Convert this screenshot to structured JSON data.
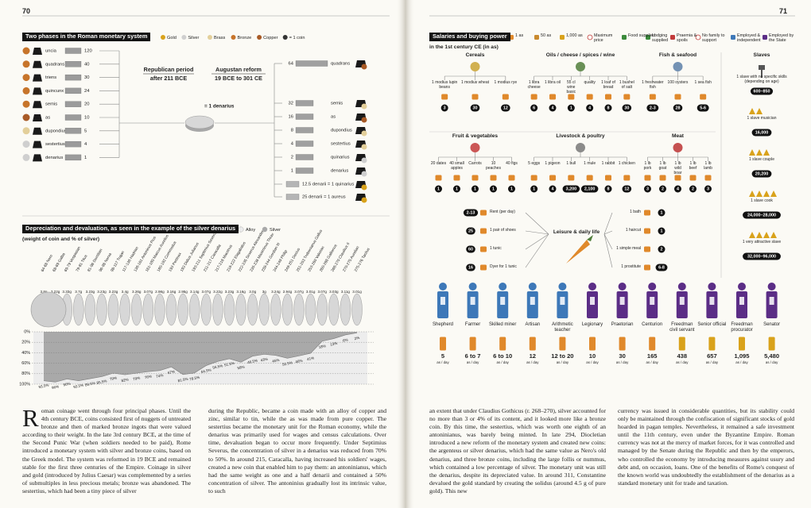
{
  "left_page": {
    "page_number": "70",
    "monetary": {
      "title": "Two phases in the Roman monetary system",
      "legend": [
        {
          "label": "Gold",
          "color": "#d9a21b"
        },
        {
          "label": "Silver",
          "color": "#cfcfcf"
        },
        {
          "label": "Brass",
          "color": "#e3cf9a"
        },
        {
          "label": "Bronze",
          "color": "#c7742a"
        },
        {
          "label": "Copper",
          "color": "#a85a26"
        },
        {
          "label": "= 1 coin",
          "color": "#333333"
        }
      ],
      "republican": {
        "title": "Republican period",
        "dates": "after 211 BCE",
        "coins": [
          {
            "name": "uncia",
            "count": "120",
            "color": "#c7742a"
          },
          {
            "name": "quadrans",
            "count": "40",
            "color": "#c7742a"
          },
          {
            "name": "triens",
            "count": "30",
            "color": "#c7742a"
          },
          {
            "name": "quincunx",
            "count": "24",
            "color": "#c7742a"
          },
          {
            "name": "semis",
            "count": "20",
            "color": "#c7742a"
          },
          {
            "name": "as",
            "count": "10",
            "color": "#a85a26"
          },
          {
            "name": "dupondius",
            "count": "5",
            "color": "#e3cf9a"
          },
          {
            "name": "sestertius",
            "count": "4",
            "color": "#cfcfcf"
          },
          {
            "name": "denarius",
            "count": "1",
            "color": "#cfcfcf"
          }
        ]
      },
      "equals": "= 1 denarius",
      "augustan": {
        "title": "Augustan reform",
        "dates": "19 BCE to 301 CE",
        "coins": [
          {
            "count": "64",
            "name": "quadrans",
            "color": "#a85a26"
          },
          {
            "count": "32",
            "name": "semis",
            "color": "#e3cf9a"
          },
          {
            "count": "16",
            "name": "as",
            "color": "#a85a26"
          },
          {
            "count": "8",
            "name": "dupondius",
            "color": "#e3cf9a"
          },
          {
            "count": "4",
            "name": "sestertius",
            "color": "#e3cf9a"
          },
          {
            "count": "2",
            "name": "quinarius",
            "color": "#cfcfcf"
          },
          {
            "count": "1",
            "name": "denarius",
            "color": "#cfcfcf"
          }
        ],
        "equivalences": [
          {
            "label": "12.5 denarii = 1 quinarius",
            "color": "#d9a21b"
          },
          {
            "label": "25 denarii = 1 aureus",
            "color": "#d9a21b"
          }
        ]
      }
    },
    "body_columns": [
      "Roman coinage went through four principal phases. Until the 4th century BCE, coins consisted first of nuggets of untreated bronze and then of marked bronze ingots that were valued according to their weight. In the late 3rd century BCE, at the time of the Second Punic War (when soldiers needed to be paid), Rome introduced a monetary system with silver and bronze coins, based on the Greek model. The system was reformed in 19 BCE and remained stable for the first three centuries of the Empire. Coinage in silver and gold (introduced by Julius Caesar) was complemented by a series of submultiples in less precious metals; bronze was abandoned. The sestertius, which had been a tiny piece of silver",
      "during the Republic, became a coin made with an alloy of copper and zinc, similar to tin, while the as was made from pure copper. The sestertius became the monetary unit for the Roman economy, while the denarius was primarily used for wages and census calculations. Over time, devaluation began to occur more frequently. Under Septimius Severus, the concentration of silver in a denarius was reduced from 70% to 50%. In around 215, Caracalla, having increased his soldiers' wages, created a new coin that enabled him to pay them: an antoninianus, which had the same weight as one and a half denarii and contained a 50% concentration of silver. The antoninius gradually lost its intrinsic value, to such"
    ]
  },
  "chart_data": {
    "type": "area",
    "title": "Depreciation and devaluation, as seen in the example of the silver denarius",
    "subtitle": "(weight of coin and % of silver)",
    "categories": [
      "64-68 Nero",
      "68-69 Galba",
      "69-79 Vespasian",
      "79-81 Titus",
      "81-96 Domitian",
      "96-98 Nerva",
      "98-117 Trajan",
      "117-138 Hadrian",
      "138-161 Antoninus Pius",
      "161-180 Marcus Aurelius",
      "180-192 Commodus",
      "193 Pertinax",
      "193 Didius Julianus",
      "193-211 Septimius Severus",
      "211-217 Caracalla",
      "217-218 Macrinus",
      "218-222 Elagabalus",
      "222-235 Severus Alexander",
      "235-238 Maximinus Thrax",
      "238-244 Gordian III",
      "244-249 Philip",
      "249-251 Decius",
      "251-253 Trebonianus Gallus",
      "253-260 Valerian",
      "260-268 Gallienus",
      "268-270 Claudius II",
      "270-275 Aurelian",
      "275-276 Tacitus"
    ],
    "weights": [
      "3.8g",
      "3.22g",
      "3.33g",
      "3.7g",
      "3.23g",
      "3.23g",
      "3.23g",
      "3.4g",
      "3.26g",
      "3.07g",
      "2.98g",
      "3.16g",
      "2.95g",
      "3.14g",
      "3.07g",
      "3.22g",
      "3.23g",
      "3.16g",
      "3.0g",
      "3g",
      "3.24g",
      "2.94g",
      "3.07g",
      "3.01g",
      "3.07g",
      "3.03g",
      "3.11g",
      "3.01g"
    ],
    "series": [
      {
        "name": "Silver",
        "color": "#a9a9a9",
        "values": [
          93.5,
          96,
          90,
          93.5,
          89.5,
          85.5,
          79,
          82,
          79,
          76,
          74,
          67,
          81.5,
          78.5,
          64.5,
          56.5,
          51.5,
          58,
          46.5,
          43,
          45,
          50.5,
          46,
          41,
          18,
          13,
          6,
          2
        ],
        "value_labels": [
          "93.5%",
          "96%",
          "90%",
          "93.5%",
          "89.5%",
          "85.5%",
          "79%",
          "82%",
          "79%",
          "76%",
          "74%",
          "67%",
          "81.5%",
          "78.5%",
          "64.5%",
          "56.5%",
          "51.5%",
          "58%",
          "46.5%",
          "43%",
          "45%",
          "50.5%",
          "46%",
          "41%",
          "18%",
          "13%",
          "6%",
          "2%"
        ]
      }
    ],
    "alloy": {
      "name": "Alloy",
      "color": "#ededed"
    },
    "ylim": [
      0,
      100
    ],
    "y_inverted": true,
    "yticks": [
      {
        "value": 0,
        "label": "0%"
      },
      {
        "value": 20,
        "label": "20%"
      },
      {
        "value": 40,
        "label": "40%"
      },
      {
        "value": 60,
        "label": "60%"
      },
      {
        "value": 80,
        "label": "80%"
      },
      {
        "value": 100,
        "label": "100%"
      }
    ],
    "grid": true
  },
  "right_page": {
    "page_number": "71",
    "title": "Salaries and buying power",
    "subtitle": "in the 1st century CE (in as)",
    "legend": [
      "1 as",
      "50 as",
      "1,000 as",
      "Maximum price",
      "Food supplied",
      "Lodging supplied",
      "Praemia & spoils",
      "No family to support",
      "Employed & independent",
      "Employed by the State"
    ],
    "groups": [
      {
        "title": "Cereals",
        "items": [
          {
            "label": "1 modius lupin beans",
            "price": "3"
          },
          {
            "label": "1 modius wheat",
            "price": "30"
          },
          {
            "label": "1 modius rye",
            "price": "12"
          }
        ]
      },
      {
        "title": "Oils / cheese / spices / wine",
        "items": [
          {
            "label": "1 libra cheese",
            "price": "6"
          },
          {
            "label": "1 libra oil",
            "price": "4"
          },
          {
            "label": "55 cl wine basic",
            "price": "1"
          },
          {
            "label": "quality",
            "price": "4"
          },
          {
            "label": "1 loaf of bread",
            "price": "8"
          },
          {
            "label": "1 bushel of salt",
            "price": "30"
          }
        ]
      },
      {
        "title": "Fish & seafood",
        "items": [
          {
            "label": "1 freshwater fish",
            "price": "2-3"
          },
          {
            "label": "100 oysters",
            "price": "28"
          },
          {
            "label": "1 sea fish",
            "price": "5-6"
          }
        ]
      },
      {
        "title": "Slaves",
        "items": [
          {
            "label": "1 slave with no specific skills (depending on age)",
            "price": "600–850"
          },
          {
            "label": "1 slave musician",
            "price": "16,000"
          },
          {
            "label": "1 slave couple",
            "price": "20,200"
          },
          {
            "label": "1 slave cook",
            "price": "24,000–28,000"
          },
          {
            "label": "1 very attractive slave",
            "price": "32,000–96,000"
          }
        ]
      },
      {
        "title": "Fruit & vegetables",
        "items": [
          {
            "label": "20 dates",
            "price": "1"
          },
          {
            "label": "40 small apples",
            "price": "1"
          },
          {
            "label": "Carrots",
            "price": "1"
          },
          {
            "label": "10 peaches",
            "price": "1"
          },
          {
            "label": "40 figs",
            "price": "1"
          }
        ]
      },
      {
        "title": "Livestock & poultry",
        "items": [
          {
            "label": "5 eggs",
            "price": "1"
          },
          {
            "label": "1 pigeon",
            "price": "4"
          },
          {
            "label": "1 bull",
            "price": "3,200"
          },
          {
            "label": "1 mule",
            "price": "2,100"
          },
          {
            "label": "1 rabbit",
            "price": "8"
          },
          {
            "label": "1 chicken",
            "price": "12"
          }
        ]
      },
      {
        "title": "Meat",
        "items": [
          {
            "label": "1 lb pork",
            "price": "3"
          },
          {
            "label": "1 lb goat",
            "price": "2"
          },
          {
            "label": "1 lb wild boar",
            "price": "4"
          },
          {
            "label": "1 lb beef",
            "price": "2"
          },
          {
            "label": "1 lb lamb",
            "price": "3"
          }
        ]
      },
      {
        "title": "Leisure & daily life",
        "items": [
          {
            "label": "Rent (per day)",
            "price": "2-13"
          },
          {
            "label": "1 pair of shoes",
            "price": "25"
          },
          {
            "label": "1 tunic",
            "price": "60"
          },
          {
            "label": "Dyer for 1 tunic",
            "price": "16"
          },
          {
            "label": "1 bath",
            "price": "1"
          },
          {
            "label": "1 haircut",
            "price": "1"
          },
          {
            "label": "1 simple meal",
            "price": "2"
          },
          {
            "label": "1 prostitute",
            "price": "6-8"
          }
        ]
      }
    ],
    "workers": {
      "unit": "as / day",
      "list": [
        {
          "name": "Shepherd",
          "wage": "5",
          "color": "#3d78b8"
        },
        {
          "name": "Farmer",
          "wage": "6 to 7",
          "color": "#3d78b8"
        },
        {
          "name": "Skilled miner",
          "wage": "6 to 10",
          "color": "#3d78b8"
        },
        {
          "name": "Artisan",
          "wage": "12",
          "color": "#3d78b8"
        },
        {
          "name": "Arithmetic teacher",
          "wage": "12 to 20",
          "color": "#3d78b8"
        },
        {
          "name": "Legionary",
          "wage": "10",
          "color": "#5b2d86"
        },
        {
          "name": "Praetorian",
          "wage": "30",
          "color": "#5b2d86"
        },
        {
          "name": "Centurion",
          "wage": "165",
          "color": "#5b2d86"
        },
        {
          "name": "Freedman civil servant",
          "wage": "438",
          "color": "#5b2d86"
        },
        {
          "name": "Senior official",
          "wage": "657",
          "color": "#5b2d86"
        },
        {
          "name": "Freedman procurator",
          "wage": "1,095",
          "color": "#5b2d86"
        },
        {
          "name": "Senator",
          "wage": "5,480",
          "color": "#5b2d86"
        }
      ]
    },
    "body_columns": [
      "an extent that under Claudius Gothicus (r. 268–270), silver accounted for no more than 3 or 4% of its content, and it looked more like a bronze coin. By this time, the sestertius, which was worth one eighth of an antoninianus, was barely being minted. In late 294, Diocletian introduced a new reform of the monetary system and created new coins: the argenteus or silver denarius, which had the same value as Nero's old denarius, and three bronze coins, including the large follis or nummus, which contained a low percentage of silver. The monetary unit was still the denarius, despite its depreciated value. In around 311, Constantine devalued the gold standard by creating the solidus (around 4.5 g of pure gold). This new",
      "currency was issued in considerable quantities, but its stability could only be maintained through the confiscation of significant stocks of gold hoarded in pagan temples. Nevertheless, it remained a safe investment until the 11th century, even under the Byzantine Empire. Roman currency was not at the mercy of market forces, for it was controlled and managed by the Senate during the Republic and then by the emperors, who controlled the economy by introducing measures against usury and debt and, on occasion, loans. One of the benefits of Rome's conquest of the known world was undoubtedly the establishment of the denarius as a standard monetary unit for trade and taxation."
    ]
  }
}
